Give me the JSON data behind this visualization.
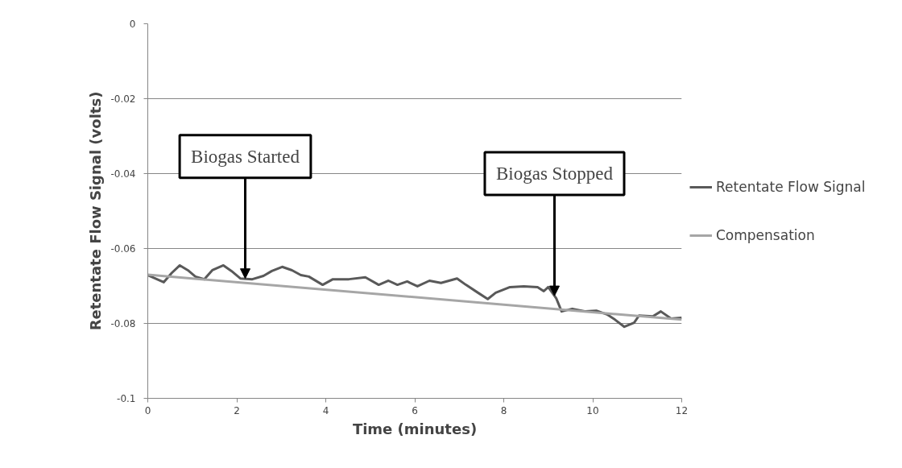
{
  "chart_data": {
    "type": "line",
    "xlabel": "Time (minutes)",
    "ylabel": "Retentate Flow Signal (volts)",
    "xlim": [
      0,
      12
    ],
    "xticks": [
      0,
      2,
      4,
      6,
      8,
      10,
      12
    ],
    "ylim": [
      -0.1,
      0
    ],
    "yticks": [
      -0.1,
      -0.08,
      -0.06,
      -0.04,
      -0.02,
      0
    ],
    "grid": "y",
    "legend": "right",
    "line_style": "solid",
    "marker": "none",
    "series": [
      {
        "name": "Retentate Flow Signal",
        "color": "#595959",
        "x": [
          0,
          0.36,
          0.54,
          0.72,
          0.9,
          1.07,
          1.27,
          1.45,
          1.7,
          1.88,
          2.08,
          2.35,
          2.6,
          2.79,
          3.02,
          3.24,
          3.44,
          3.62,
          3.93,
          4.16,
          4.52,
          4.89,
          5.19,
          5.41,
          5.61,
          5.83,
          6.06,
          6.33,
          6.59,
          6.95,
          7.15,
          7.42,
          7.64,
          7.82,
          8.14,
          8.45,
          8.76,
          8.9,
          9.0,
          9.18,
          9.3,
          9.54,
          9.84,
          10.08,
          10.32,
          10.5,
          10.71,
          10.93,
          11.04,
          11.35,
          11.53,
          11.76,
          12.0
        ],
        "values": [
          -0.0671,
          -0.069,
          -0.0665,
          -0.0645,
          -0.0658,
          -0.0675,
          -0.0682,
          -0.0658,
          -0.0645,
          -0.066,
          -0.068,
          -0.0682,
          -0.0673,
          -0.066,
          -0.0649,
          -0.0658,
          -0.0671,
          -0.0675,
          -0.0697,
          -0.0682,
          -0.0682,
          -0.0677,
          -0.0697,
          -0.0686,
          -0.0697,
          -0.0688,
          -0.0701,
          -0.0686,
          -0.0692,
          -0.068,
          -0.0697,
          -0.0718,
          -0.0735,
          -0.0718,
          -0.0703,
          -0.0701,
          -0.0703,
          -0.0714,
          -0.0703,
          -0.0733,
          -0.0768,
          -0.0761,
          -0.0768,
          -0.0766,
          -0.0776,
          -0.079,
          -0.0809,
          -0.0798,
          -0.0779,
          -0.0781,
          -0.0768,
          -0.0787,
          -0.0785
        ]
      },
      {
        "name": "Compensation",
        "color": "#a6a6a6",
        "x": [
          0,
          12
        ],
        "values": [
          -0.067,
          -0.079
        ]
      }
    ],
    "annotations": [
      {
        "text": "Biogas Started",
        "x": 2.19,
        "y": -0.068
      },
      {
        "text": "Biogas Stopped",
        "x": 9.14,
        "y": -0.0726
      }
    ]
  }
}
